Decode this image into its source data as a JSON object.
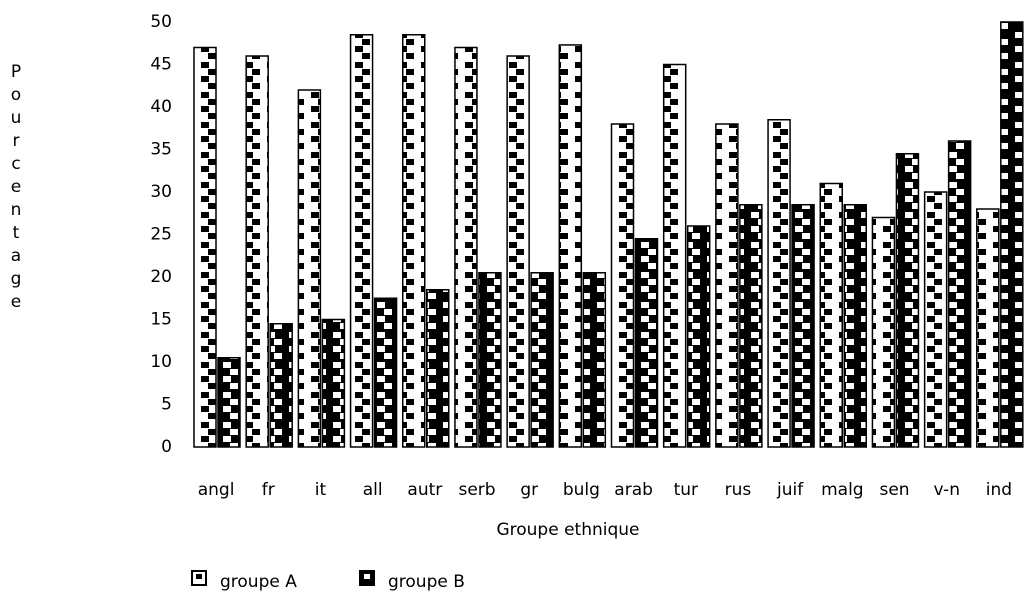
{
  "chart_data": {
    "type": "bar",
    "x_label": "Groupe ethnique",
    "y_label": "Pourcentage",
    "categories": [
      "angl",
      "fr",
      "it",
      "all",
      "autr",
      "serb",
      "gr",
      "bulg",
      "arab",
      "tur",
      "rus",
      "juif",
      "malg",
      "sen",
      "v-n",
      "ind"
    ],
    "series": [
      {
        "name": "groupe A",
        "color": "#ffffff",
        "values": [
          47,
          46,
          42,
          48.5,
          48.5,
          47,
          46,
          47.3,
          38,
          45,
          38,
          38.5,
          31,
          27,
          30,
          28
        ]
      },
      {
        "name": "groupe B",
        "color": "#000000",
        "values": [
          10.5,
          14.5,
          15,
          17.5,
          18.5,
          20.5,
          20.5,
          20.5,
          24.5,
          26,
          28.5,
          28.5,
          28.5,
          34.5,
          36,
          50
        ]
      }
    ],
    "ylim": [
      0,
      50
    ],
    "yticks": [
      0,
      5,
      10,
      15,
      20,
      25,
      30,
      35,
      40,
      45,
      50
    ]
  }
}
